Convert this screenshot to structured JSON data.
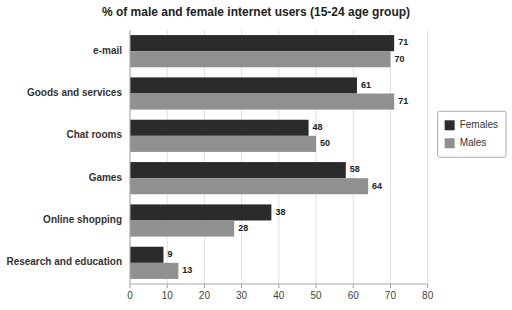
{
  "chart_data": {
    "type": "bar",
    "orientation": "horizontal",
    "title": "% of male and female internet users (15-24 age group)",
    "categories": [
      "e-mail",
      "Goods and services",
      "Chat rooms",
      "Games",
      "Online shopping",
      "Research and education"
    ],
    "series": [
      {
        "name": "Females",
        "color": "#2b2b2b",
        "values": [
          71,
          61,
          48,
          58,
          38,
          9
        ]
      },
      {
        "name": "Males",
        "color": "#909090",
        "values": [
          70,
          71,
          50,
          64,
          28,
          13
        ]
      }
    ],
    "xlim": [
      0,
      80
    ],
    "xticks": [
      0,
      10,
      20,
      30,
      40,
      50,
      60,
      70,
      80
    ],
    "grid": true,
    "legend": "right",
    "data_labels": true
  }
}
